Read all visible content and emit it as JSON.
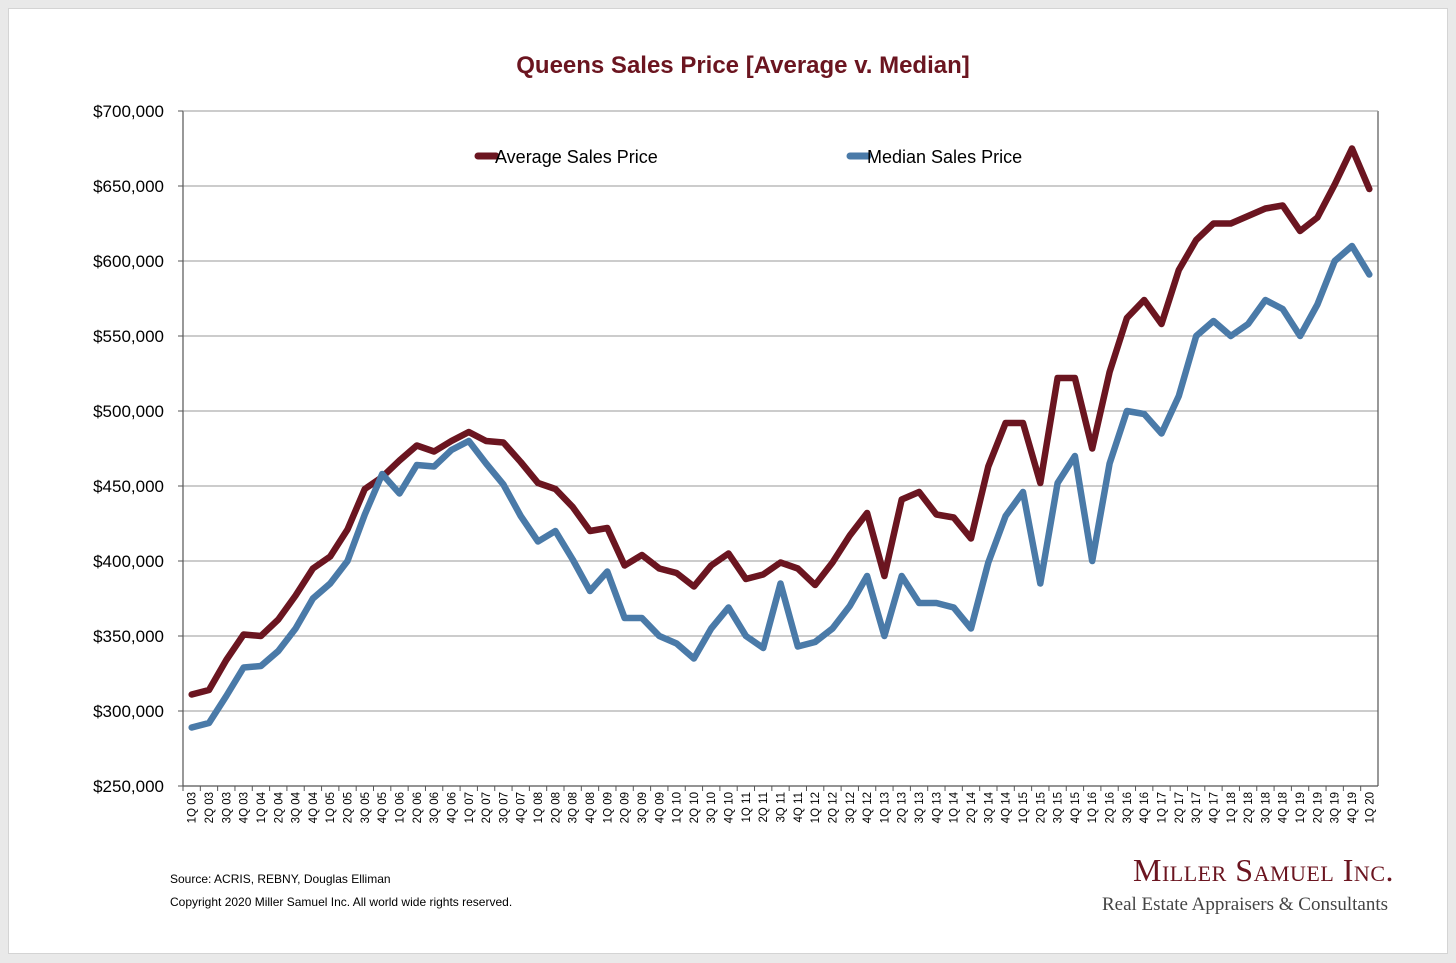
{
  "colors": {
    "average": "#6b1520",
    "median": "#4a7aa8",
    "title": "#6b1520",
    "grid": "#9a9a9a"
  },
  "chart_data": {
    "type": "line",
    "title": "Queens Sales Price [Average v. Median]",
    "xlabel": "",
    "ylabel": "",
    "ylim": [
      250000,
      700000
    ],
    "yticks": [
      250000,
      300000,
      350000,
      400000,
      450000,
      500000,
      550000,
      600000,
      650000,
      700000
    ],
    "ytick_labels": [
      "$250,000",
      "$300,000",
      "$350,000",
      "$400,000",
      "$450,000",
      "$500,000",
      "$550,000",
      "$600,000",
      "$650,000",
      "$700,000"
    ],
    "grid": true,
    "legend_position": "top",
    "categories": [
      "1Q 03",
      "2Q 03",
      "3Q 03",
      "4Q 03",
      "1Q 04",
      "2Q 04",
      "3Q 04",
      "4Q 04",
      "1Q 05",
      "2Q 05",
      "3Q 05",
      "4Q 05",
      "1Q 06",
      "2Q 06",
      "3Q 06",
      "4Q 06",
      "1Q 07",
      "2Q 07",
      "3Q 07",
      "4Q 07",
      "1Q 08",
      "2Q 08",
      "3Q 08",
      "4Q 08",
      "1Q 09",
      "2Q 09",
      "3Q 09",
      "4Q 09",
      "1Q 10",
      "2Q 10",
      "3Q 10",
      "4Q 10",
      "1Q 11",
      "2Q 11",
      "3Q 11",
      "4Q 11",
      "1Q 12",
      "2Q 12",
      "3Q 12",
      "4Q 12",
      "1Q 13",
      "2Q 13",
      "3Q 13",
      "4Q 13",
      "1Q 14",
      "2Q 14",
      "3Q 14",
      "4Q 14",
      "1Q 15",
      "2Q 15",
      "3Q 15",
      "4Q 15",
      "1Q 16",
      "2Q 16",
      "3Q 16",
      "4Q 16",
      "1Q 17",
      "2Q 17",
      "3Q 17",
      "4Q 17",
      "1Q 18",
      "2Q 18",
      "3Q 18",
      "4Q 18",
      "1Q 19",
      "2Q 19",
      "3Q 19",
      "4Q 19",
      "1Q 20"
    ],
    "series": [
      {
        "name": "Average Sales Price",
        "color": "#6b1520",
        "values": [
          311000,
          314000,
          334000,
          351000,
          350000,
          361000,
          377000,
          395000,
          403000,
          421000,
          448000,
          456000,
          467000,
          477000,
          473000,
          480000,
          486000,
          480000,
          479000,
          466000,
          452000,
          448000,
          436000,
          420000,
          422000,
          397000,
          404000,
          395000,
          392000,
          383000,
          397000,
          405000,
          388000,
          391000,
          399000,
          395000,
          384000,
          399000,
          417000,
          432000,
          390000,
          441000,
          446000,
          431000,
          429000,
          415000,
          463000,
          492000,
          492000,
          452000,
          522000,
          522000,
          475000,
          526000,
          562000,
          574000,
          558000,
          594000,
          614000,
          625000,
          625000,
          630000,
          635000,
          637000,
          620000,
          629000,
          651000,
          675000,
          648000
        ]
      },
      {
        "name": "Median Sales Price",
        "color": "#4a7aa8",
        "values": [
          289000,
          292000,
          310000,
          329000,
          330000,
          340000,
          355000,
          375000,
          385000,
          400000,
          431000,
          458000,
          445000,
          464000,
          463000,
          474000,
          480000,
          465000,
          451000,
          430000,
          413000,
          420000,
          401000,
          380000,
          393000,
          362000,
          362000,
          350000,
          345000,
          335000,
          355000,
          369000,
          350000,
          342000,
          385000,
          343000,
          346000,
          355000,
          370000,
          390000,
          350000,
          390000,
          372000,
          372000,
          369000,
          355000,
          399000,
          430000,
          446000,
          385000,
          452000,
          470000,
          400000,
          465000,
          500000,
          498000,
          485000,
          510000,
          550000,
          560000,
          550000,
          558000,
          574000,
          568000,
          550000,
          571000,
          600000,
          610000,
          591000
        ]
      }
    ]
  },
  "footer": {
    "source": "Source: ACRIS, REBNY, Douglas Elliman",
    "copyright": "Copyright 2020 Miller Samuel Inc.  All world wide rights reserved."
  },
  "logo": {
    "name": "Miller Samuel Inc.",
    "tagline": "Real Estate Appraisers & Consultants"
  }
}
